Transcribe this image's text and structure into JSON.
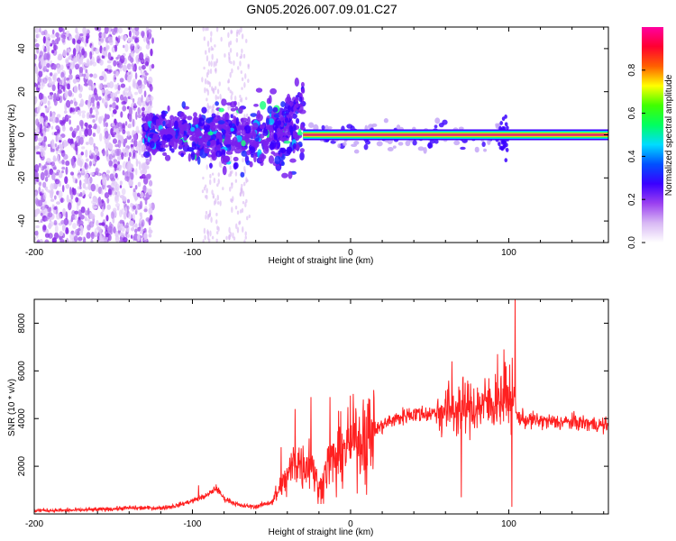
{
  "title": "GN05.2026.007.09.01.C27",
  "colors": {
    "snr_line": "#ff2020",
    "tone_line": "#e0306a",
    "background": "#ffffff",
    "axes": "#000000"
  },
  "chart_data": [
    {
      "type": "heatmap",
      "name": "spectrogram",
      "title": "GN05.2026.007.09.01.C27",
      "xlabel": "Height of straight line (km)",
      "ylabel": "Frequency (Hz)",
      "xlim": [
        -200,
        163
      ],
      "ylim": [
        -50,
        50
      ],
      "x_ticks": [
        -200,
        -100,
        0,
        100
      ],
      "x_tick_labels": [
        "-200",
        "-100",
        "0",
        "100"
      ],
      "y_ticks": [
        -40,
        -20,
        0,
        20,
        40
      ],
      "y_tick_labels": [
        "-40",
        "-20",
        "0",
        "20",
        "40"
      ],
      "colorbar": {
        "label": "Normalized spectral amplitude",
        "range": [
          0,
          1
        ],
        "ticks": [
          0,
          0.2,
          0.4,
          0.6,
          0.8
        ],
        "tick_labels": [
          "0.0",
          "0.2",
          "0.4",
          "0.6",
          "0.8"
        ],
        "colors": [
          "#ffffff",
          "#d8b8f4",
          "#9b40f0",
          "#3a00ff",
          "#0050ff",
          "#00dcff",
          "#00ff60",
          "#40ff00",
          "#ffff00",
          "#ff6000",
          "#ff0030",
          "#ff00a0"
        ]
      },
      "features": {
        "noise_floor_x": [
          -200,
          -120
        ],
        "scattered_blobs_x": [
          -130,
          -30
        ],
        "tone_start_x": -30,
        "tone_frequency_hz": 0,
        "tone_end_x": 163,
        "burst_x": 97
      }
    },
    {
      "type": "line",
      "name": "snr",
      "title": "",
      "xlabel": "Height of straight line (km)",
      "ylabel": "SNR (10 * v/v)",
      "xlim": [
        -200,
        163
      ],
      "ylim": [
        0,
        9000
      ],
      "x_ticks": [
        -200,
        -100,
        0,
        100
      ],
      "x_tick_labels": [
        "-200",
        "-100",
        "0",
        "100"
      ],
      "y_ticks": [
        2000,
        4000,
        6000,
        8000
      ],
      "y_tick_labels": [
        "2000",
        "4000",
        "6000",
        "8000"
      ],
      "series": [
        {
          "name": "SNR",
          "x": [
            -200,
            -180,
            -160,
            -140,
            -120,
            -110,
            -100,
            -90,
            -85,
            -80,
            -70,
            -60,
            -50,
            -45,
            -40,
            -35,
            -30,
            -25,
            -20,
            -15,
            -10,
            -5,
            0,
            5,
            10,
            15,
            20,
            25,
            30,
            35,
            40,
            50,
            60,
            70,
            80,
            85,
            90,
            95,
            100,
            103,
            105,
            110,
            120,
            130,
            140,
            150,
            163
          ],
          "values": [
            150,
            150,
            180,
            250,
            250,
            350,
            550,
            800,
            1100,
            650,
            350,
            300,
            500,
            1000,
            1500,
            2300,
            2000,
            2400,
            900,
            2000,
            2300,
            2700,
            3000,
            3100,
            3300,
            3500,
            3700,
            3900,
            4000,
            4150,
            4200,
            4200,
            4350,
            4450,
            4500,
            4600,
            4650,
            4800,
            4900,
            5200,
            4100,
            3950,
            3900,
            3850,
            3850,
            3800,
            3700
          ]
        }
      ],
      "spikes": [
        {
          "x": -96,
          "value": 1200
        },
        {
          "x": -44,
          "value": 2800
        },
        {
          "x": -35,
          "value": 4400
        },
        {
          "x": -25,
          "value": 4900
        },
        {
          "x": -13,
          "value": 4900
        },
        {
          "x": -9,
          "value": 700
        },
        {
          "x": 8,
          "value": 4800
        },
        {
          "x": 10,
          "value": 800
        },
        {
          "x": 64,
          "value": 6400
        },
        {
          "x": 70,
          "value": 700
        },
        {
          "x": 69,
          "value": 5200
        },
        {
          "x": 93,
          "value": 6700
        },
        {
          "x": 97,
          "value": 6900
        },
        {
          "x": 102,
          "value": 300
        },
        {
          "x": 104,
          "value": 9000
        }
      ]
    }
  ]
}
